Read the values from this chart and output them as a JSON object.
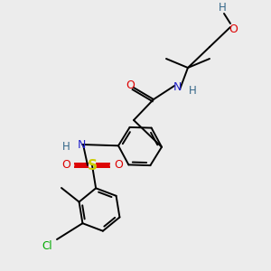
{
  "bg": "#ececec",
  "fig_w": 3.0,
  "fig_h": 3.0,
  "dpi": 100,
  "lw": 1.4,
  "ring_r": 24,
  "colors": {
    "C": "#000000",
    "N": "#2222cc",
    "O": "#dd0000",
    "S": "#cccc00",
    "Cl": "#00aa00",
    "H": "#336688"
  }
}
